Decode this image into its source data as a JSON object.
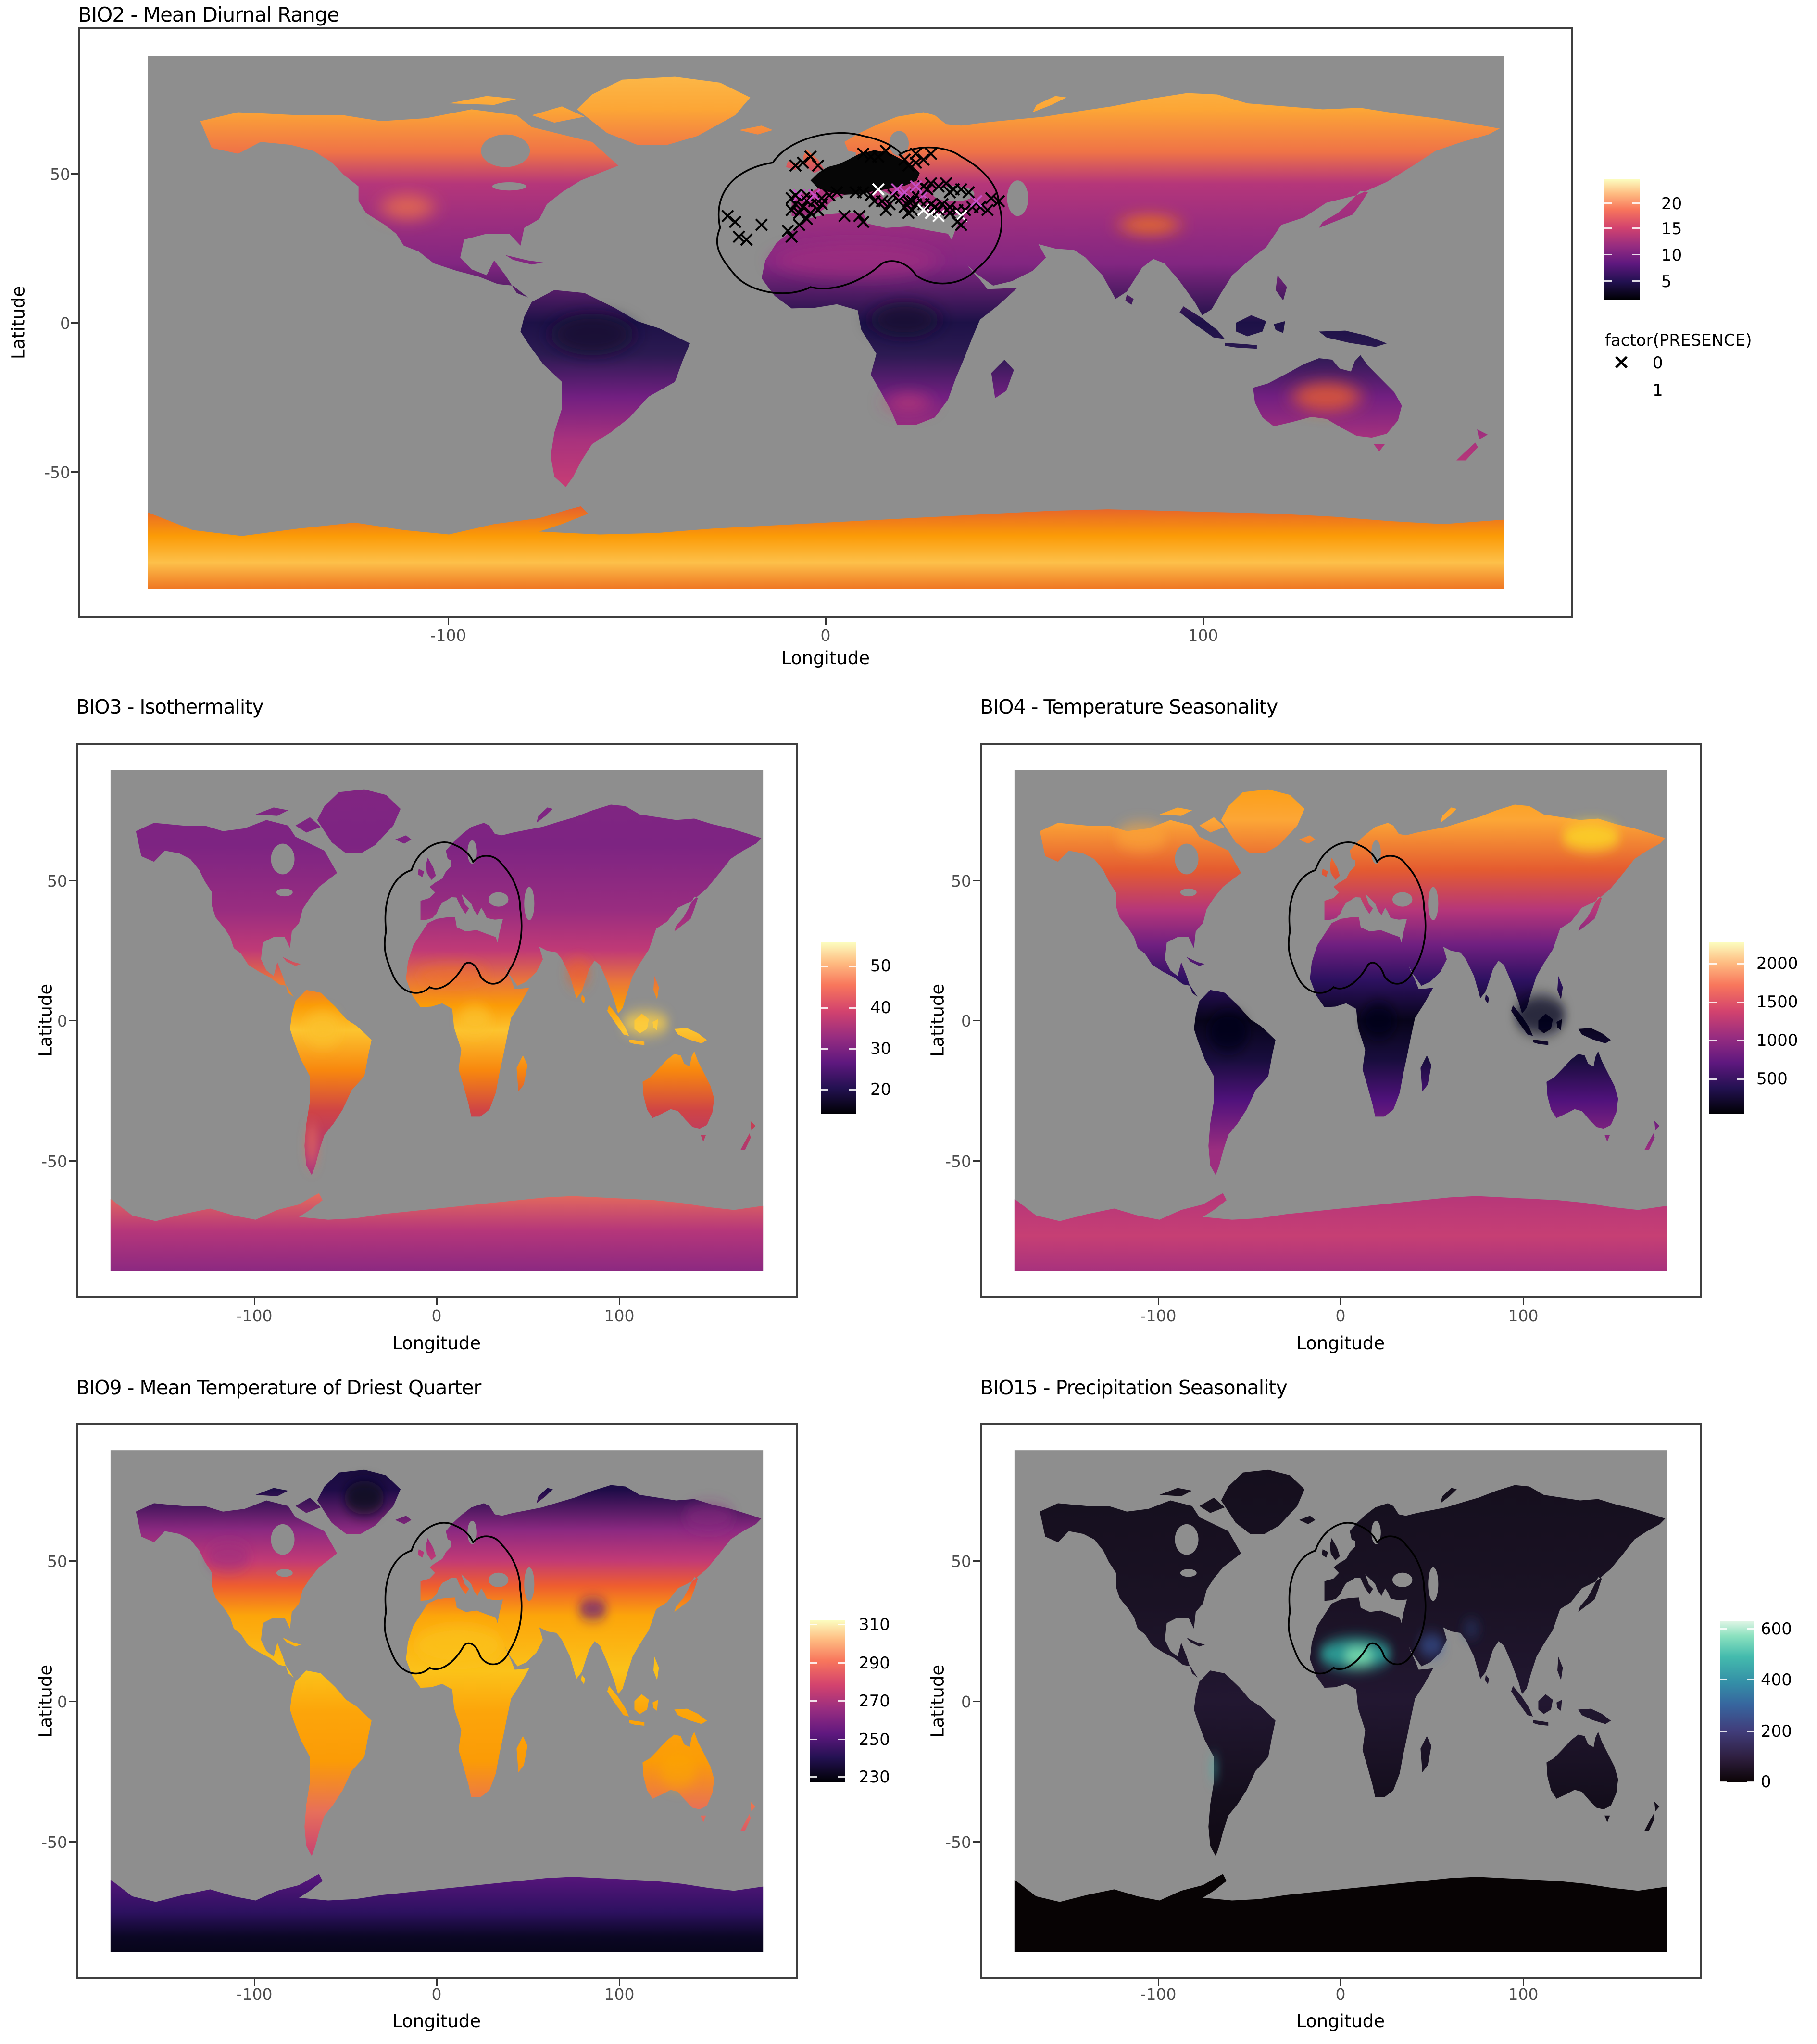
{
  "figure": {
    "background": "#ffffff",
    "panel_background": "#ffffff",
    "ocean_color": "#8e8e8e",
    "grid_color": "#ebebeb",
    "panel_border_color": "#3f3f3f",
    "axis_text_color": "#4d4d4d",
    "study_area_outline_color": "#000000"
  },
  "chart_data": [
    {
      "id": "bio2",
      "type": "heatmap",
      "title": "BIO2 - Mean Diurnal Range",
      "xlabel": "Longitude",
      "ylabel": "Latitude",
      "xticks": [
        "-100",
        "0",
        "100"
      ],
      "yticks": [
        "50",
        "0",
        "-50"
      ],
      "x_range": [
        -180,
        180
      ],
      "y_range": [
        -90,
        90
      ],
      "grid": true,
      "legend_position": "right",
      "colorbar": {
        "palette": "magma",
        "ticks": [
          "20",
          "15",
          "10",
          "5"
        ],
        "value_range": [
          1,
          25
        ],
        "gradient": [
          "#000004 0%",
          "#231151 15%",
          "#5f187f 30%",
          "#982d80 45%",
          "#d3436e 60%",
          "#f8765c 75%",
          "#febb81 88%",
          "#fcfdbf 100%"
        ]
      },
      "description": "World raster map of mean diurnal temperature range; bright yellow-orange at high northern latitudes and Antarctica, dark purple-black in the tropics, purple mid southern latitudes; black study-area outline over Europe/North Africa with presence crosses clustered over Europe.",
      "presence": {
        "legend_title": "factor(PRESENCE)",
        "items": [
          {
            "symbol": "×",
            "label": "0",
            "color": "#000000"
          },
          {
            "symbol": "×",
            "label": "1",
            "color": "#ffffff"
          }
        ],
        "marker_colors": {
          "k": "#000000",
          "w": "#ffffff",
          "m": "#c74fc7"
        },
        "points": [
          [
            -26,
            36,
            "k"
          ],
          [
            -24,
            34,
            "k"
          ],
          [
            -17,
            33,
            "k"
          ],
          [
            -23,
            29,
            "k"
          ],
          [
            -21,
            28,
            "k"
          ],
          [
            -10,
            31,
            "k"
          ],
          [
            -7,
            33,
            "k"
          ],
          [
            -5,
            35,
            "k"
          ],
          [
            -9,
            29,
            "k"
          ],
          [
            -9,
            38,
            "k"
          ],
          [
            -8,
            40,
            "k"
          ],
          [
            -9,
            42,
            "k"
          ],
          [
            -7,
            37,
            "k"
          ],
          [
            -6,
            39,
            "k"
          ],
          [
            -4,
            37,
            "k"
          ],
          [
            -2,
            38,
            "k"
          ],
          [
            -5,
            41,
            "k"
          ],
          [
            -3,
            41,
            "k"
          ],
          [
            -1,
            40,
            "k"
          ],
          [
            -7,
            43,
            "m"
          ],
          [
            -5,
            43,
            "k"
          ],
          [
            -3,
            43,
            "m"
          ],
          [
            -1,
            42,
            "k"
          ],
          [
            -8,
            43,
            "k"
          ],
          [
            1,
            43,
            "k"
          ],
          [
            3,
            44,
            "k"
          ],
          [
            8,
            44,
            "k"
          ],
          [
            10,
            44,
            "k"
          ],
          [
            12,
            43,
            "k"
          ],
          [
            13,
            41,
            "k"
          ],
          [
            15,
            41,
            "k"
          ],
          [
            17,
            40,
            "k"
          ],
          [
            16,
            38,
            "k"
          ],
          [
            18,
            43,
            "k"
          ],
          [
            20,
            42,
            "k"
          ],
          [
            22,
            41,
            "k"
          ],
          [
            19,
            45,
            "m"
          ],
          [
            21,
            44,
            "m"
          ],
          [
            24,
            43,
            "k"
          ],
          [
            26,
            43,
            "m"
          ],
          [
            23,
            41,
            "k"
          ],
          [
            21,
            39,
            "k"
          ],
          [
            23,
            38,
            "k"
          ],
          [
            24,
            40,
            "k"
          ],
          [
            26,
            40,
            "k"
          ],
          [
            22,
            37,
            "k"
          ],
          [
            26,
            38,
            "w"
          ],
          [
            28,
            37,
            "w"
          ],
          [
            30,
            36,
            "w"
          ],
          [
            14,
            45,
            "w"
          ],
          [
            29,
            39,
            "k"
          ],
          [
            31,
            40,
            "k"
          ],
          [
            33,
            39,
            "k"
          ],
          [
            35,
            38,
            "k"
          ],
          [
            37,
            38,
            "k"
          ],
          [
            39,
            39,
            "k"
          ],
          [
            41,
            39,
            "k"
          ],
          [
            36,
            36,
            "w"
          ],
          [
            33,
            37,
            "k"
          ],
          [
            30,
            38,
            "k"
          ],
          [
            28,
            40,
            "k"
          ],
          [
            43,
            38,
            "k"
          ],
          [
            40,
            41,
            "m"
          ],
          [
            34,
            45,
            "k"
          ],
          [
            36,
            45,
            "k"
          ],
          [
            33,
            44,
            "k"
          ],
          [
            38,
            44,
            "k"
          ],
          [
            44,
            42,
            "k"
          ],
          [
            46,
            41,
            "k"
          ],
          [
            26,
            46,
            "k"
          ],
          [
            28,
            47,
            "k"
          ],
          [
            30,
            46,
            "k"
          ],
          [
            24,
            46,
            "m"
          ],
          [
            32,
            47,
            "k"
          ],
          [
            27,
            45,
            "k"
          ],
          [
            22,
            53,
            "k"
          ],
          [
            24,
            54,
            "k"
          ],
          [
            26,
            55,
            "k"
          ],
          [
            28,
            57,
            "k"
          ],
          [
            24,
            57,
            "k"
          ],
          [
            21,
            55,
            "k"
          ],
          [
            12,
            56,
            "k"
          ],
          [
            14,
            56,
            "k"
          ],
          [
            16,
            58,
            "k"
          ],
          [
            10,
            57,
            "k"
          ],
          [
            -8,
            53,
            "k"
          ],
          [
            -6,
            54,
            "k"
          ],
          [
            -4,
            56,
            "k"
          ],
          [
            -2,
            53,
            "k"
          ],
          [
            35,
            34,
            "k"
          ],
          [
            36,
            33,
            "k"
          ],
          [
            9,
            36,
            "k"
          ],
          [
            10,
            34,
            "k"
          ],
          [
            5,
            36,
            "k"
          ]
        ]
      }
    },
    {
      "id": "bio3",
      "type": "heatmap",
      "title": "BIO3 - Isothermality",
      "xlabel": "Longitude",
      "ylabel": "Latitude",
      "xticks": [
        "-100",
        "0",
        "100"
      ],
      "yticks": [
        "50",
        "0",
        "-50"
      ],
      "x_range": [
        -180,
        180
      ],
      "y_range": [
        -90,
        90
      ],
      "grid": true,
      "legend_position": "right",
      "colorbar": {
        "palette": "magma",
        "ticks": [
          "50",
          "40",
          "30",
          "20"
        ],
        "value_range": [
          12,
          57
        ],
        "gradient": [
          "#000004 0%",
          "#231151 15%",
          "#5f187f 30%",
          "#982d80 45%",
          "#d3436e 60%",
          "#f8765c 75%",
          "#febb81 88%",
          "#fcfdbf 100%"
        ]
      },
      "description": "World raster map of isothermality; purple at high latitudes, bright orange-yellow in the tropics (Amazon, Congo, Indonesia), black study-area outline over Europe/North Africa."
    },
    {
      "id": "bio4",
      "type": "heatmap",
      "title": "BIO4 - Temperature Seasonality",
      "xlabel": "Longitude",
      "ylabel": "Latitude",
      "xticks": [
        "-100",
        "0",
        "100"
      ],
      "yticks": [
        "50",
        "0",
        "-50"
      ],
      "x_range": [
        -180,
        180
      ],
      "y_range": [
        -90,
        90
      ],
      "grid": true,
      "legend_position": "right",
      "colorbar": {
        "palette": "magma",
        "ticks": [
          "2000",
          "1500",
          "1000",
          "500"
        ],
        "value_range": [
          0,
          2300
        ],
        "gradient": [
          "#000004 0%",
          "#231151 15%",
          "#5f187f 30%",
          "#982d80 45%",
          "#d3436e 60%",
          "#f8765c 75%",
          "#febb81 88%",
          "#fcfdbf 100%"
        ]
      },
      "description": "World raster map of temperature seasonality; bright orange-yellow at high northern latitudes (brightest in NE Siberia), near-black in the tropics, purple-pink Antarctica; black study-area outline over Europe/North Africa."
    },
    {
      "id": "bio9",
      "type": "heatmap",
      "title": "BIO9 - Mean Temperature of Driest Quarter",
      "xlabel": "Longitude",
      "ylabel": "Latitude",
      "xticks": [
        "-100",
        "0",
        "100"
      ],
      "yticks": [
        "50",
        "0",
        "-50"
      ],
      "x_range": [
        -180,
        180
      ],
      "y_range": [
        -90,
        90
      ],
      "grid": true,
      "legend_position": "right",
      "colorbar": {
        "palette": "magma",
        "ticks": [
          "310",
          "290",
          "270",
          "250",
          "230"
        ],
        "value_range": [
          225,
          315
        ],
        "gradient": [
          "#000004 0%",
          "#231151 15%",
          "#5f187f 30%",
          "#982d80 45%",
          "#d3436e 60%",
          "#f8765c 75%",
          "#febb81 88%",
          "#fcfdbf 100%"
        ]
      },
      "description": "World raster map of mean temperature of driest quarter; dark purple Greenland/Arctic, yellow-orange tropics with brightest Sahara, dark purple/black Antarctica; black study-area outline over Europe/North Africa."
    },
    {
      "id": "bio15",
      "type": "heatmap",
      "title": "BIO15 - Precipitation Seasonality",
      "xlabel": "Longitude",
      "ylabel": "Latitude",
      "xticks": [
        "-100",
        "0",
        "100"
      ],
      "yticks": [
        "50",
        "0",
        "-50"
      ],
      "x_range": [
        -180,
        180
      ],
      "y_range": [
        -90,
        90
      ],
      "grid": true,
      "legend_position": "right",
      "colorbar": {
        "palette": "mako",
        "ticks": [
          "600",
          "400",
          "200",
          "0"
        ],
        "value_range": [
          0,
          630
        ],
        "gradient": [
          "#0b0405 0%",
          "#2e1e3e 15%",
          "#413d7b 32%",
          "#37659e 48%",
          "#348fa7 62%",
          "#44bbad 78%",
          "#8be1bf 91%",
          "#def5e5 100%"
        ]
      },
      "description": "World raster map of precipitation seasonality; continents nearly black with a bright teal-green band over the Sahara/Sahel, black Antarctica; black study-area outline over Europe/North Africa."
    }
  ]
}
